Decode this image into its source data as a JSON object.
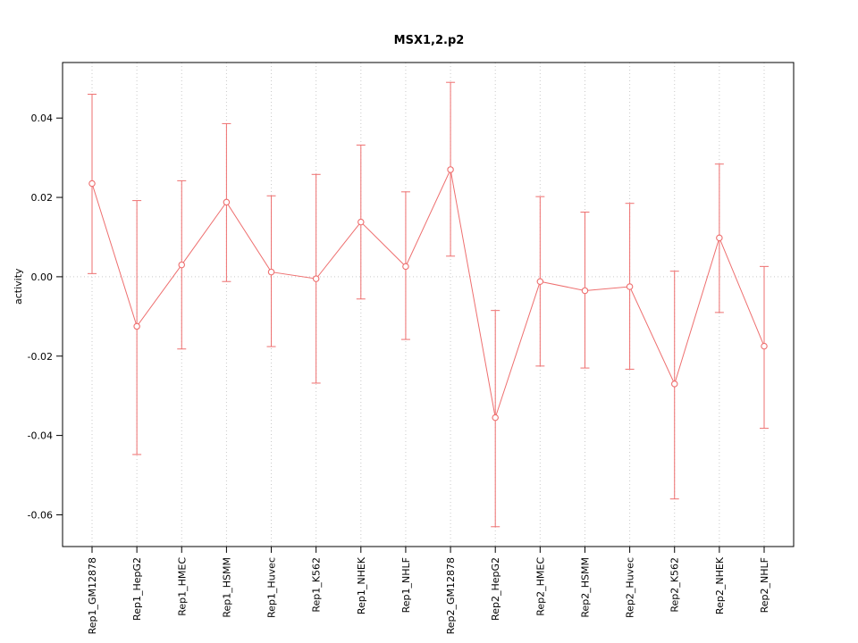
{
  "chart_data": {
    "type": "line",
    "title": "MSX1,2.p2",
    "xlabel": "",
    "ylabel": "activity",
    "categories": [
      "Rep1_GM12878",
      "Rep1_HepG2",
      "Rep1_HMEC",
      "Rep1_HSMM",
      "Rep1_Huvec",
      "Rep1_K562",
      "Rep1_NHEK",
      "Rep1_NHLF",
      "Rep2_GM12878",
      "Rep2_HepG2",
      "Rep2_HMEC",
      "Rep2_HSMM",
      "Rep2_Huvec",
      "Rep2_K562",
      "Rep2_NHEK",
      "Rep2_NHLF"
    ],
    "series": [
      {
        "name": "activity",
        "values": [
          0.0235,
          -0.0125,
          0.003,
          0.0188,
          0.0012,
          -0.0005,
          0.0138,
          0.0026,
          0.027,
          -0.0355,
          -0.0012,
          -0.0035,
          -0.0025,
          -0.027,
          0.0098,
          -0.0175
        ],
        "lower": [
          0.0008,
          -0.0448,
          -0.0182,
          -0.0012,
          -0.0176,
          -0.0268,
          -0.0056,
          -0.0158,
          0.0052,
          -0.063,
          -0.0225,
          -0.023,
          -0.0233,
          -0.056,
          -0.009,
          -0.0382
        ],
        "upper": [
          0.046,
          0.0192,
          0.0242,
          0.0386,
          0.0204,
          0.0258,
          0.0332,
          0.0214,
          0.049,
          -0.0085,
          0.0202,
          0.0163,
          0.0185,
          0.0014,
          0.0284,
          0.0026
        ]
      }
    ],
    "ylim": [
      -0.068,
      0.054
    ],
    "yticks": [
      -0.06,
      -0.04,
      -0.02,
      0,
      0.02,
      0.04
    ],
    "ytick_labels": [
      "-0.06",
      "-0.04",
      "-0.02",
      "0.00",
      "0.02",
      "0.04"
    ],
    "zero_line": 0,
    "grid": "dotted vertical line at each category, dotted horizontal line at zero",
    "legend": "none",
    "marker": "open-circle",
    "colors": {
      "series": "#ee6f6f",
      "grid": "#c9c9c9",
      "axis": "#000000",
      "background": "#ffffff",
      "marker_fill": "#ffffff"
    }
  }
}
